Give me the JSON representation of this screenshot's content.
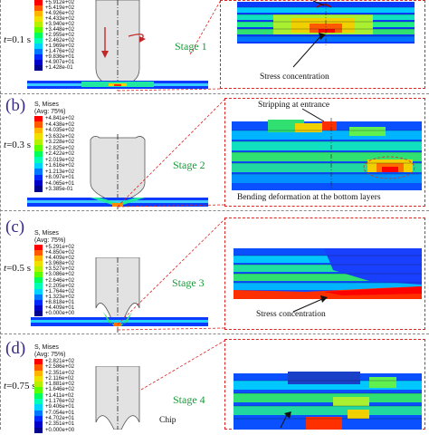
{
  "panels": [
    {
      "letter": "",
      "time_prefix": "t",
      "time_value": "=0.1 s",
      "stage": "Stage 1",
      "legend_title": [
        "",
        ""
      ],
      "legend_values": [
        "+5.912e+02",
        "+5.419e+02",
        "+4.926e+02",
        "+4.433e+02",
        "+3.940e+02",
        "+3.448e+02",
        "+2.955e+02",
        "+2.462e+02",
        "+1.969e+02",
        "+1.476e+02",
        "+9.836e+01",
        "+4.907e+01",
        "+1.428e-01"
      ],
      "annotations": [
        "Stress concentration"
      ]
    },
    {
      "letter": "(b)",
      "time_prefix": "t",
      "time_value": "=0.3 s",
      "stage": "Stage 2",
      "legend_title": [
        "S, Mises",
        "(Avg: 75%)"
      ],
      "legend_values": [
        "+4.841e+02",
        "+4.438e+02",
        "+4.035e+02",
        "+3.632e+02",
        "+3.228e+02",
        "+2.825e+02",
        "+2.422e+02",
        "+2.019e+02",
        "+1.616e+02",
        "+1.213e+02",
        "+8.097e+01",
        "+4.065e+01",
        "+3.385e-01"
      ],
      "annotations": [
        "Stripping at entrance",
        "Bending deformation at the bottom layers"
      ]
    },
    {
      "letter": "(c)",
      "time_prefix": "t",
      "time_value": "=0.5 s",
      "stage": "Stage 3",
      "legend_title": [
        "S, Mises",
        "(Avg: 75%)"
      ],
      "legend_values": [
        "+5.291e+02",
        "+4.850e+02",
        "+4.409e+02",
        "+3.968e+02",
        "+3.527e+02",
        "+3.086e+02",
        "+2.646e+02",
        "+2.205e+02",
        "+1.764e+02",
        "+1.323e+02",
        "+8.818e+01",
        "+4.409e+01",
        "+0.000e+00"
      ],
      "annotations": [
        "Stress concentration"
      ]
    },
    {
      "letter": "(d)",
      "time_prefix": "t",
      "time_value": "=0.75 s",
      "stage": "Stage 4",
      "legend_title": [
        "S, Mises",
        "(Avg: 75%)"
      ],
      "legend_values": [
        "+2.821e+02",
        "+2.586e+02",
        "+2.351e+02",
        "+2.116e+02",
        "+1.881e+02",
        "+1.646e+02",
        "+1.411e+02",
        "+1.176e+02",
        "+9.406e+01",
        "+7.054e+01",
        "+4.702e+01",
        "+2.351e+01",
        "+0.000e+00"
      ],
      "annotations": [
        "Chip"
      ]
    }
  ],
  "colors": {
    "scale": [
      "#ff0000",
      "#ff5a00",
      "#ffb400",
      "#f0e000",
      "#b4f000",
      "#5aff00",
      "#00ff5a",
      "#00ffb4",
      "#00d2ff",
      "#0078ff",
      "#0028ff",
      "#0000c8",
      "#00008c"
    ],
    "stage_text": "#1a9a3a",
    "panel_letter": "#3a2a8a",
    "dash": "#dd2222"
  }
}
